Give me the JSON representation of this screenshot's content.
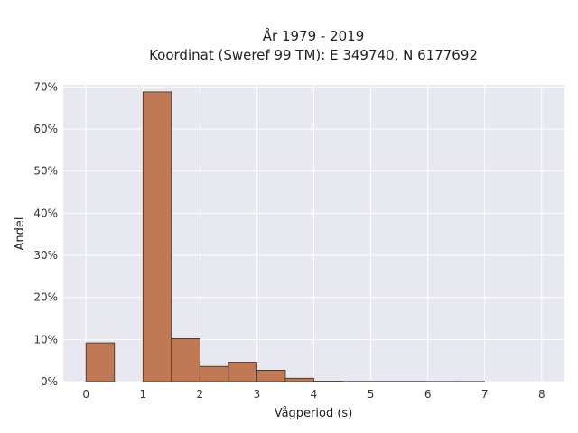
{
  "chart_data": {
    "type": "bar",
    "title_line1": "År 1979 - 2019",
    "title_line2": "Koordinat (Sweref 99 TM): E 349740, N 6177692",
    "xlabel": "Vågperiod (s)",
    "ylabel": "Andel",
    "xlim": [
      -0.4,
      8.4
    ],
    "ylim": [
      0,
      70.5
    ],
    "x_ticks": [
      0,
      1,
      2,
      3,
      4,
      5,
      6,
      7,
      8
    ],
    "y_ticks": [
      0,
      10,
      20,
      30,
      40,
      50,
      60,
      70
    ],
    "y_tick_suffix": "%",
    "grid": true,
    "bin_width": 0.5,
    "bins": [
      {
        "x0": 0.0,
        "value": 9.2
      },
      {
        "x0": 0.5,
        "value": 0.0
      },
      {
        "x0": 1.0,
        "value": 68.8
      },
      {
        "x0": 1.5,
        "value": 10.2
      },
      {
        "x0": 2.0,
        "value": 3.6
      },
      {
        "x0": 2.5,
        "value": 4.6
      },
      {
        "x0": 3.0,
        "value": 2.7
      },
      {
        "x0": 3.5,
        "value": 0.8
      },
      {
        "x0": 4.0,
        "value": 0.1
      },
      {
        "x0": 4.5,
        "value": 0.05
      },
      {
        "x0": 5.0,
        "value": 0.05
      },
      {
        "x0": 5.5,
        "value": 0.05
      },
      {
        "x0": 6.0,
        "value": 0.03
      },
      {
        "x0": 6.5,
        "value": 0.03
      }
    ],
    "colors": {
      "bar_fill": "#bf7a55",
      "bar_stroke": "#3a2a20",
      "plot_bg": "#e8e8f0",
      "grid": "#ffffff"
    }
  }
}
